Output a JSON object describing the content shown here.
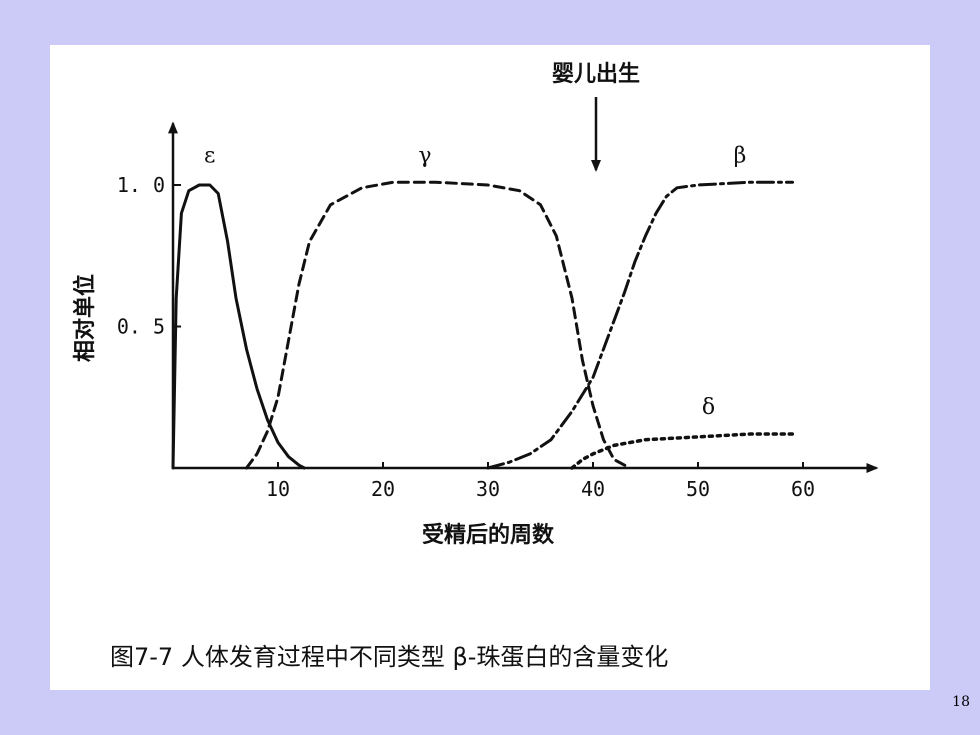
{
  "slide_number": "18",
  "chart_data": {
    "type": "line",
    "xlabel": "受精后的周数",
    "ylabel": "相对单位",
    "caption": "图7-7    人体发育过程中不同类型 β-珠蛋白的含量变化",
    "annotation": "婴儿出生",
    "annotation_x": 40,
    "xlim": [
      0,
      67
    ],
    "ylim": [
      0,
      1.2
    ],
    "x_ticks": [
      10,
      20,
      30,
      40,
      50,
      60
    ],
    "x_tick_labels": [
      "10",
      "20",
      "30",
      "40",
      "50",
      "60"
    ],
    "y_ticks": [
      0.5,
      1.0
    ],
    "y_tick_labels": [
      "0. 5",
      "1. 0"
    ],
    "grid": false,
    "series": [
      {
        "name": "ε",
        "style": "solid",
        "points": [
          [
            0,
            0
          ],
          [
            0.3,
            0.6
          ],
          [
            0.8,
            0.9
          ],
          [
            1.5,
            0.98
          ],
          [
            2.5,
            1.0
          ],
          [
            3.5,
            1.0
          ],
          [
            4.3,
            0.97
          ],
          [
            5.2,
            0.8
          ],
          [
            6,
            0.6
          ],
          [
            7,
            0.42
          ],
          [
            8,
            0.28
          ],
          [
            9,
            0.17
          ],
          [
            10,
            0.09
          ],
          [
            11,
            0.04
          ],
          [
            12,
            0.01
          ],
          [
            12.5,
            0
          ]
        ]
      },
      {
        "name": "γ",
        "style": "dash",
        "points": [
          [
            7,
            0
          ],
          [
            8,
            0.05
          ],
          [
            9,
            0.13
          ],
          [
            10,
            0.25
          ],
          [
            11,
            0.45
          ],
          [
            12,
            0.65
          ],
          [
            13,
            0.8
          ],
          [
            15,
            0.93
          ],
          [
            18,
            0.99
          ],
          [
            21,
            1.01
          ],
          [
            25,
            1.01
          ],
          [
            30,
            1.0
          ],
          [
            33,
            0.98
          ],
          [
            35,
            0.93
          ],
          [
            36.5,
            0.82
          ],
          [
            38,
            0.6
          ],
          [
            39,
            0.38
          ],
          [
            40,
            0.22
          ],
          [
            41,
            0.1
          ],
          [
            42,
            0.03
          ],
          [
            43.5,
            0
          ]
        ]
      },
      {
        "name": "β",
        "style": "dash-dot",
        "points": [
          [
            30,
            0
          ],
          [
            32,
            0.02
          ],
          [
            34,
            0.05
          ],
          [
            36,
            0.1
          ],
          [
            38,
            0.2
          ],
          [
            40,
            0.32
          ],
          [
            41,
            0.42
          ],
          [
            42,
            0.52
          ],
          [
            43,
            0.62
          ],
          [
            44,
            0.73
          ],
          [
            45,
            0.82
          ],
          [
            46,
            0.9
          ],
          [
            47,
            0.96
          ],
          [
            48,
            0.99
          ],
          [
            50,
            1.0
          ],
          [
            55,
            1.01
          ],
          [
            59,
            1.01
          ]
        ]
      },
      {
        "name": "δ",
        "style": "dot",
        "points": [
          [
            38,
            0
          ],
          [
            39,
            0.03
          ],
          [
            40,
            0.05
          ],
          [
            42,
            0.08
          ],
          [
            45,
            0.1
          ],
          [
            50,
            0.11
          ],
          [
            55,
            0.12
          ],
          [
            59,
            0.12
          ]
        ]
      }
    ]
  }
}
